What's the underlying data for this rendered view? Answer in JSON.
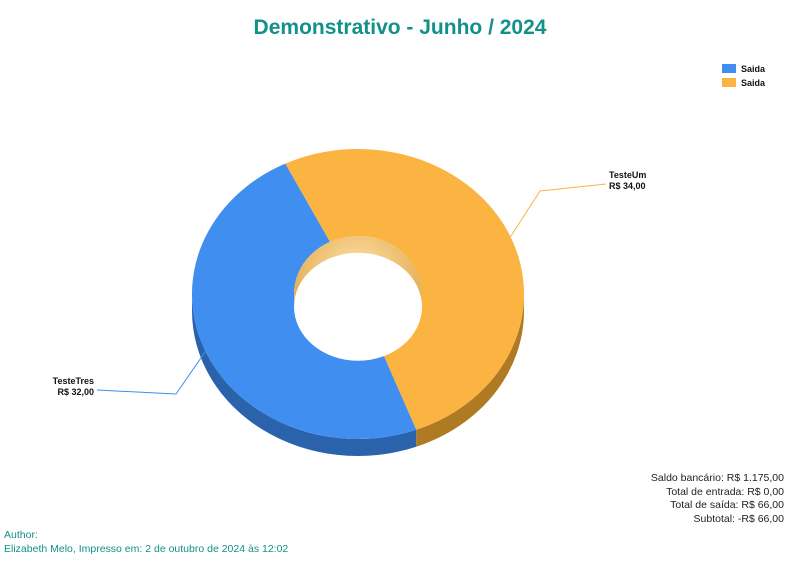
{
  "chart_data": {
    "type": "pie",
    "title": "Demonstrativo - Junho / 2024",
    "donut": true,
    "three_d": true,
    "legend_position": "top-right",
    "legend": [
      {
        "label": "Saida",
        "color": "#3f8ef0"
      },
      {
        "label": "Saida",
        "color": "#fbb441"
      }
    ],
    "slices": [
      {
        "label": "TesteUm",
        "value": 34,
        "value_label": "R$ 34,00",
        "color": "#fbb441",
        "side_color": "#b07a22"
      },
      {
        "label": "TesteTres",
        "value": 32,
        "value_label": "R$ 32,00",
        "color": "#3f8ef0",
        "side_color": "#2a62ab"
      }
    ]
  },
  "summary": [
    "Saldo bancário: R$ 1.175,00",
    "Total de entrada: R$ 0,00",
    "Total de saída: R$ 66,00",
    "Subtotal: -R$ 66,00"
  ],
  "footer": {
    "author_label": "Author:",
    "line": "Elizabeth Melo, Impresso em: 2 de outubro de 2024 às 12:02"
  }
}
